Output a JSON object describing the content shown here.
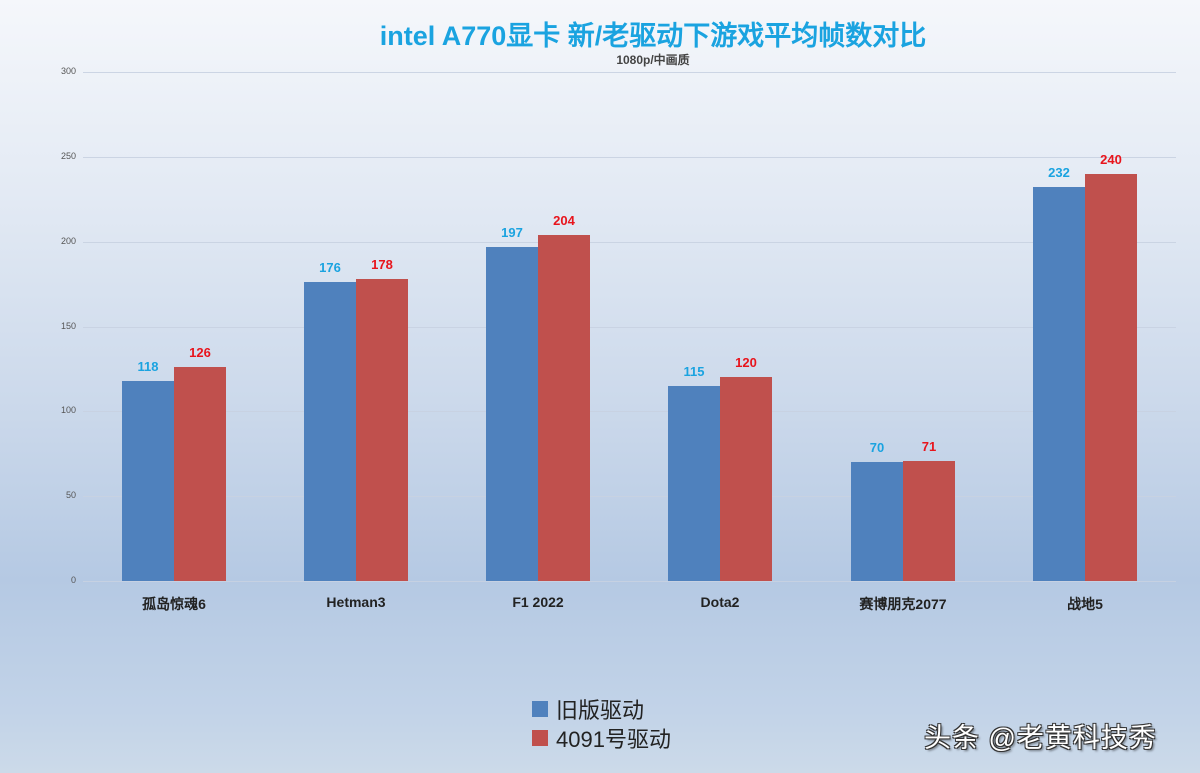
{
  "title": "intel A770显卡 新/老驱动下游戏平均帧数对比",
  "subtitle": "1080p/中画质",
  "colors": {
    "old": "#4f81bd",
    "new": "#c0504d",
    "old_label": "#1aa3e0",
    "new_label": "#e8141c",
    "title": "#1aa3e0"
  },
  "legend": [
    {
      "label": "旧版驱动",
      "color": "#4f81bd"
    },
    {
      "label": "4091号驱动",
      "color": "#c0504d"
    }
  ],
  "watermark": "头条 @老黄科技秀",
  "y_ticks": [
    "0",
    "50",
    "100",
    "150",
    "200",
    "250",
    "300"
  ],
  "chart_data": {
    "type": "bar",
    "title": "intel A770显卡 新/老驱动下游戏平均帧数对比",
    "subtitle": "1080p/中画质",
    "xlabel": "",
    "ylabel": "",
    "ylim": [
      0,
      300
    ],
    "yticks": [
      0,
      50,
      100,
      150,
      200,
      250,
      300
    ],
    "grid": true,
    "legend_position": "bottom",
    "categories": [
      "孤岛惊魂6",
      "Hetman3",
      "F1 2022",
      "Dota2",
      "赛博朋克2077",
      "战地5"
    ],
    "series": [
      {
        "name": "旧版驱动",
        "values": [
          118,
          176,
          197,
          115,
          70,
          232
        ]
      },
      {
        "name": "4091号驱动",
        "values": [
          126,
          178,
          204,
          120,
          71,
          240
        ]
      }
    ]
  }
}
